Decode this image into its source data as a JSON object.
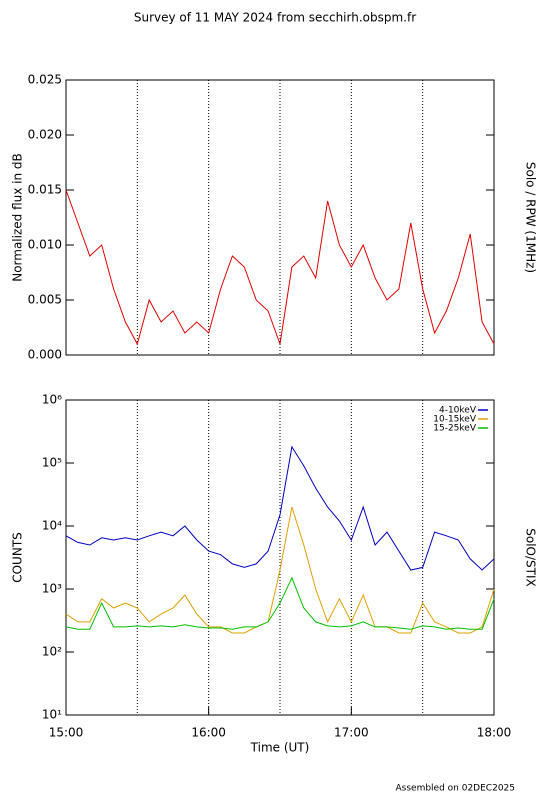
{
  "title": "Survey of 11 MAY 2024 from secchirh.obspm.fr",
  "footer": "Assembled on 02DEC2025",
  "chart_data": [
    {
      "type": "line",
      "ylabel": "Normalized flux in dB",
      "side_label": "Solo / RPW (1MHz)",
      "xlim": [
        0,
        180
      ],
      "vlines": [
        30,
        60,
        90,
        120,
        150
      ],
      "ylim": [
        0,
        0.025
      ],
      "yticks": [
        {
          "value": 0,
          "label": "0.000"
        },
        {
          "value": 0.005,
          "label": "0.005"
        },
        {
          "value": 0.01,
          "label": "0.010"
        },
        {
          "value": 0.015,
          "label": "0.015"
        },
        {
          "value": 0.02,
          "label": "0.020"
        },
        {
          "value": 0.025,
          "label": "0.025"
        }
      ],
      "x": [
        0,
        5,
        10,
        15,
        20,
        25,
        30,
        35,
        40,
        45,
        50,
        55,
        60,
        65,
        70,
        75,
        80,
        85,
        90,
        95,
        100,
        105,
        110,
        115,
        120,
        125,
        130,
        135,
        140,
        145,
        150,
        155,
        160,
        165,
        170,
        175,
        180
      ],
      "values": [
        0.015,
        0.012,
        0.009,
        0.01,
        0.006,
        0.003,
        0.001,
        0.005,
        0.003,
        0.004,
        0.002,
        0.003,
        0.002,
        0.006,
        0.009,
        0.008,
        0.005,
        0.004,
        0.001,
        0.008,
        0.009,
        0.007,
        0.014,
        0.01,
        0.008,
        0.01,
        0.007,
        0.005,
        0.006,
        0.012,
        0.006,
        0.002,
        0.004,
        0.007,
        0.011,
        0.003,
        0.001
      ],
      "color": "#e00000"
    },
    {
      "type": "line",
      "ylabel": "COUNTS",
      "side_label": "SolO/STIX",
      "xlabel": "Time (UT)",
      "xlim": [
        0,
        180
      ],
      "vlines": [
        30,
        60,
        90,
        120,
        150
      ],
      "xticks": [
        {
          "value": 0,
          "label": "15:00"
        },
        {
          "value": 60,
          "label": "16:00"
        },
        {
          "value": 120,
          "label": "17:00"
        },
        {
          "value": 180,
          "label": "18:00"
        }
      ],
      "log": true,
      "ylim": [
        10,
        1000000
      ],
      "yticks": [
        {
          "value": 10,
          "label": "10¹"
        },
        {
          "value": 100,
          "label": "10²"
        },
        {
          "value": 1000,
          "label": "10³"
        },
        {
          "value": 10000,
          "label": "10⁴"
        },
        {
          "value": 100000,
          "label": "10⁵"
        },
        {
          "value": 1000000,
          "label": "10⁶"
        }
      ],
      "legend": "top right",
      "x": [
        0,
        5,
        10,
        15,
        20,
        25,
        30,
        35,
        40,
        45,
        50,
        55,
        60,
        65,
        70,
        75,
        80,
        85,
        90,
        95,
        100,
        105,
        110,
        115,
        120,
        125,
        130,
        135,
        140,
        145,
        150,
        155,
        160,
        165,
        170,
        175,
        180
      ],
      "series": [
        {
          "name": "4-10keV",
          "color": "#0000c0",
          "values": [
            7000,
            5500,
            5000,
            6500,
            6000,
            6500,
            6000,
            7000,
            8000,
            7000,
            10000,
            6000,
            4000,
            3500,
            2500,
            2200,
            2500,
            4000,
            15000,
            180000,
            90000,
            40000,
            20000,
            12000,
            6000,
            20000,
            5000,
            8000,
            4000,
            2000,
            2200,
            8000,
            7000,
            6000,
            3000,
            2000,
            3000
          ]
        },
        {
          "name": "10-15keV",
          "color": "#e0a000",
          "values": [
            400,
            300,
            300,
            700,
            500,
            600,
            500,
            300,
            400,
            500,
            800,
            400,
            250,
            250,
            200,
            200,
            250,
            300,
            2000,
            20000,
            5000,
            1000,
            300,
            700,
            300,
            800,
            250,
            250,
            200,
            200,
            600,
            300,
            250,
            200,
            200,
            250,
            1000
          ]
        },
        {
          "name": "15-25keV",
          "color": "#00c000",
          "values": [
            250,
            230,
            230,
            600,
            250,
            250,
            260,
            250,
            260,
            250,
            270,
            250,
            240,
            240,
            230,
            250,
            250,
            300,
            600,
            1500,
            500,
            300,
            260,
            250,
            260,
            300,
            250,
            250,
            240,
            230,
            260,
            250,
            230,
            240,
            230,
            230,
            700
          ]
        }
      ]
    }
  ]
}
